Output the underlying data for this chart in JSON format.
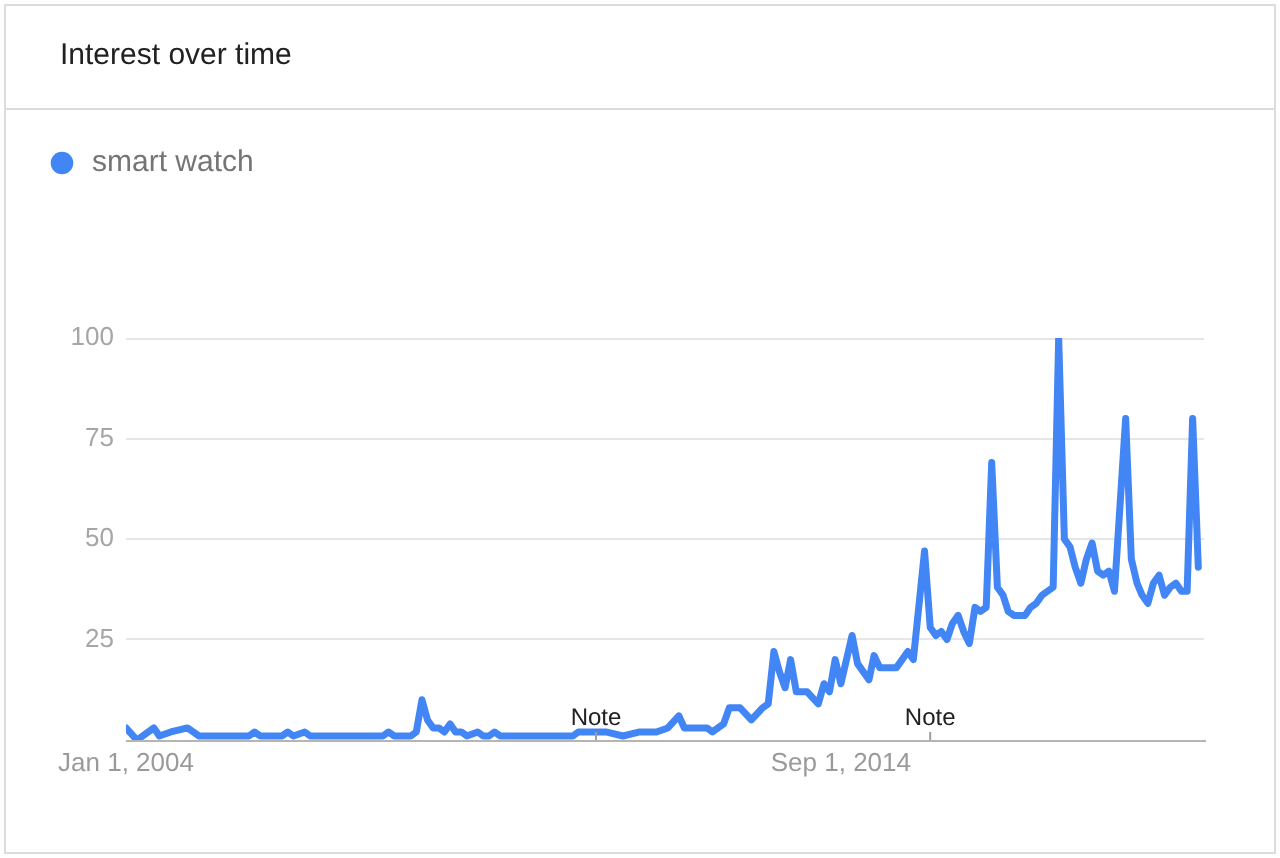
{
  "chart_data": {
    "type": "line",
    "title": "Interest over time",
    "x": [
      "2004-01",
      "2004-03",
      "2004-06",
      "2004-07",
      "2004-09",
      "2004-12",
      "2005-02",
      "2005-11",
      "2005-12",
      "2006-01",
      "2006-05",
      "2006-06",
      "2006-07",
      "2006-09",
      "2006-10",
      "2007-11",
      "2007-12",
      "2008-01",
      "2008-04",
      "2008-05",
      "2008-06",
      "2008-07",
      "2008-08",
      "2008-09",
      "2008-10",
      "2008-11",
      "2008-12",
      "2009-01",
      "2009-02",
      "2009-04",
      "2009-05",
      "2009-06",
      "2009-07",
      "2009-08",
      "2010-09",
      "2010-10",
      "2011-01",
      "2011-03",
      "2011-06",
      "2011-09",
      "2011-12",
      "2012-02",
      "2012-04",
      "2012-05",
      "2012-09",
      "2012-10",
      "2012-12",
      "2013-01",
      "2013-03",
      "2013-05",
      "2013-07",
      "2013-08",
      "2013-09",
      "2013-10",
      "2013-11",
      "2013-12",
      "2014-01",
      "2014-03",
      "2014-05",
      "2014-06",
      "2014-07",
      "2014-08",
      "2014-09",
      "2014-11",
      "2014-12",
      "2015-02",
      "2015-03",
      "2015-04",
      "2015-06",
      "2015-07",
      "2015-09",
      "2015-10",
      "2015-12",
      "2016-01",
      "2016-02",
      "2016-03",
      "2016-04",
      "2016-05",
      "2016-06",
      "2016-07",
      "2016-08",
      "2016-09",
      "2016-10",
      "2016-11",
      "2016-12",
      "2017-01",
      "2017-02",
      "2017-03",
      "2017-04",
      "2017-05",
      "2017-06",
      "2017-07",
      "2017-08",
      "2017-09",
      "2017-10",
      "2017-11",
      "2017-12",
      "2018-01",
      "2018-02",
      "2018-03",
      "2018-04",
      "2018-05",
      "2018-06",
      "2018-07",
      "2018-08",
      "2018-09",
      "2018-10",
      "2018-12",
      "2019-01",
      "2019-02",
      "2019-03",
      "2019-04",
      "2019-05",
      "2019-06",
      "2019-07",
      "2019-08",
      "2019-09",
      "2019-10",
      "2019-11",
      "2019-12",
      "2020-01"
    ],
    "series": [
      {
        "name": "smart watch",
        "color": "#4285f4",
        "values": [
          3,
          0,
          3,
          1,
          2,
          3,
          1,
          1,
          2,
          1,
          1,
          2,
          1,
          2,
          1,
          1,
          2,
          1,
          1,
          2,
          10,
          5,
          3,
          3,
          2,
          4,
          2,
          2,
          1,
          2,
          1,
          1,
          2,
          1,
          1,
          2,
          2,
          2,
          1,
          2,
          2,
          3,
          6,
          3,
          3,
          2,
          4,
          8,
          8,
          5,
          8,
          9,
          22,
          17,
          13,
          20,
          12,
          12,
          9,
          14,
          12,
          20,
          14,
          26,
          19,
          15,
          21,
          18,
          18,
          18,
          22,
          20,
          47,
          28,
          26,
          27,
          25,
          29,
          31,
          27,
          24,
          33,
          32,
          33,
          69,
          38,
          36,
          32,
          31,
          31,
          31,
          33,
          34,
          36,
          37,
          38,
          100,
          50,
          48,
          43,
          39,
          45,
          49,
          42,
          41,
          42,
          37,
          80,
          45,
          39,
          36,
          34,
          39,
          41,
          36,
          38,
          39,
          37,
          37,
          80,
          43
        ]
      }
    ],
    "xlim": [
      "2004-01",
      "2020-02"
    ],
    "xticks": [
      {
        "value": "2004-01-01",
        "label": "Jan 1, 2004"
      },
      {
        "value": "2014-09-01",
        "label": "Sep 1, 2014"
      }
    ],
    "ylim": [
      0,
      100
    ],
    "yticks": [
      25,
      50,
      75,
      100
    ],
    "grid": "y",
    "legend": "top left",
    "annotations": [
      "Note",
      "Note"
    ]
  }
}
